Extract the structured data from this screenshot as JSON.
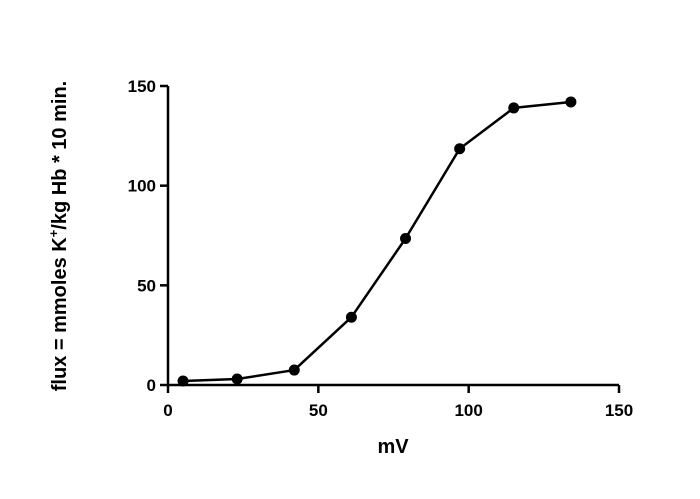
{
  "chart_data": {
    "type": "line",
    "xlabel": "mV",
    "ylabel": {
      "pre": "flux = mmoles K",
      "sup": "+",
      "post": "/kg Hb * 10 min."
    },
    "xlim": [
      0,
      150
    ],
    "ylim": [
      0,
      150
    ],
    "x_ticks": [
      "0",
      "50",
      "100",
      "150"
    ],
    "y_ticks": [
      "0",
      "50",
      "100",
      "150"
    ],
    "grid": false,
    "line_color": "#000000",
    "marker": "filled-circle",
    "x": [
      5,
      23,
      42,
      61,
      79,
      97,
      115,
      134
    ],
    "y": [
      2,
      3,
      7.5,
      34,
      73.5,
      118.5,
      139,
      142
    ]
  }
}
